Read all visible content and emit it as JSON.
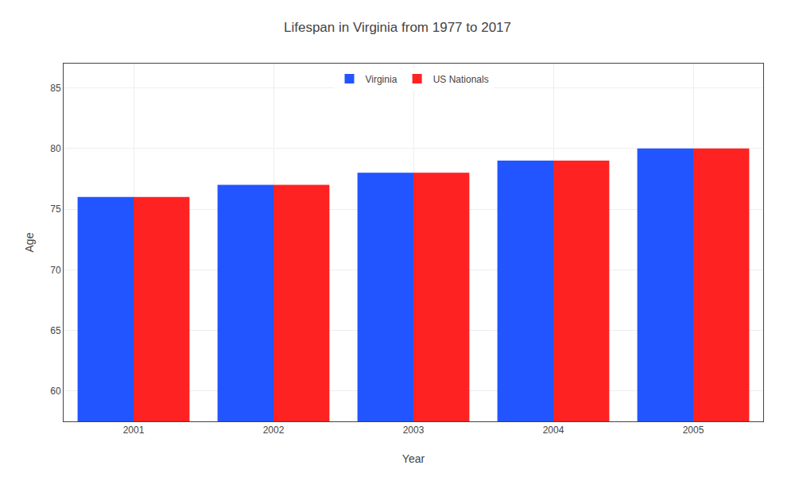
{
  "chart_data": {
    "type": "bar",
    "title": "Lifespan in Virginia from 1977 to 2017",
    "x_label": "Year",
    "y_label": "Age",
    "categories": [
      "2001",
      "2002",
      "2003",
      "2004",
      "2005"
    ],
    "series": [
      {
        "name": "Virginia",
        "color": "#2255ff",
        "values": [
          76,
          77,
          78,
          79,
          80
        ]
      },
      {
        "name": "US Nationals",
        "color": "#ff2222",
        "values": [
          76,
          77,
          78,
          79,
          80
        ]
      }
    ],
    "ylim": [
      57.5,
      87
    ],
    "yticks": [
      60,
      65,
      70,
      75,
      80,
      85
    ],
    "grid": true,
    "legend": "upper center"
  }
}
